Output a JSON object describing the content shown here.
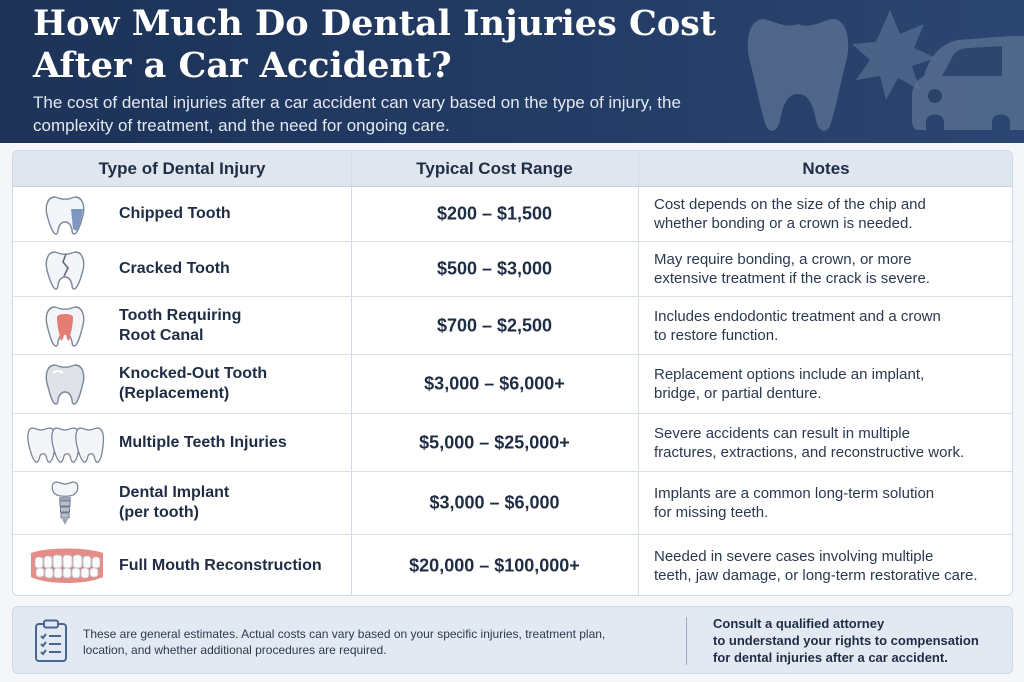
{
  "header": {
    "title": "How Much Do Dental Injuries Cost After a Car Accident?",
    "subtitle": "The cost of dental injuries after a car accident can vary based on the type of injury, the complexity of treatment, and the need for ongoing care."
  },
  "table": {
    "columns": [
      "Type of Dental Injury",
      "Typical Cost Range",
      "Notes"
    ],
    "rows": [
      {
        "icon": "chipped-tooth-icon",
        "type": "Chipped Tooth",
        "cost": "$200 – $1,500",
        "note": "Cost depends on the size of the chip and\nwhether bonding or a crown is needed."
      },
      {
        "icon": "cracked-tooth-icon",
        "type": "Cracked Tooth",
        "cost": "$500 – $3,000",
        "note": "May require bonding, a crown, or more\nextensive treatment if the crack is severe."
      },
      {
        "icon": "root-canal-tooth-icon",
        "type": "Tooth Requiring\nRoot Canal",
        "cost": "$700 – $2,500",
        "note": "Includes endodontic treatment and a crown\nto restore function."
      },
      {
        "icon": "knocked-out-tooth-icon",
        "type": "Knocked-Out Tooth\n(Replacement)",
        "cost": "$3,000 – $6,000+",
        "note": "Replacement options include an implant,\nbridge, or partial denture."
      },
      {
        "icon": "multiple-teeth-icon",
        "type": "Multiple Teeth Injuries",
        "cost": "$5,000 – $25,000+",
        "note": "Severe accidents can result in multiple\nfractures, extractions, and reconstructive work."
      },
      {
        "icon": "dental-implant-icon",
        "type": "Dental Implant\n(per tooth)",
        "cost": "$3,000 – $6,000",
        "note": "Implants are a common long-term solution\nfor missing teeth."
      },
      {
        "icon": "denture-icon",
        "type": "Full Mouth Reconstruction",
        "cost": "$20,000 – $100,000+",
        "note": "Needed in severe cases involving multiple\nteeth, jaw damage, or long-term restorative care."
      }
    ]
  },
  "footer": {
    "disclaimer": "These are general estimates. Actual costs can vary based on your specific injuries, treatment plan,\nlocation, and whether additional procedures are required.",
    "consult": "Consult a qualified attorney\nto understand your rights to compensation\nfor dental injuries after a car accident."
  },
  "colors": {
    "header_bg": "#1d3358",
    "table_header_bg": "#dfe6f0",
    "text_dark": "#1f2d44",
    "footer_bg": "#e3e9f2"
  }
}
